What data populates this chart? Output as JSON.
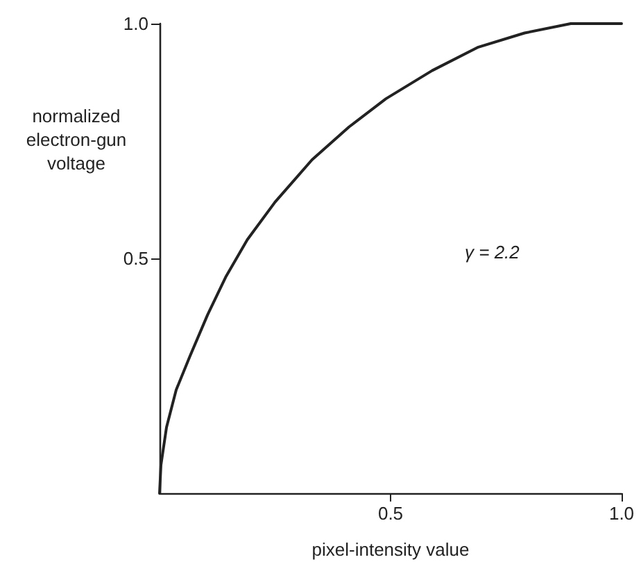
{
  "chart_data": {
    "type": "line",
    "xlabel": "pixel-intensity value",
    "ylabel": "normalized\nelectron-gun\nvoltage",
    "annotations": [
      "γ = 2.2"
    ],
    "xlim": [
      0,
      1
    ],
    "ylim": [
      0,
      1
    ],
    "xticks": [
      0.5,
      {
        "value": 1,
        "label": "1.0"
      }
    ],
    "yticks": [
      0.5,
      {
        "value": 1,
        "label": "1.0"
      }
    ],
    "grid": false,
    "marker": "none",
    "line_style": "solid",
    "series": [
      {
        "color": "#222222",
        "x": [
          0,
          0.003,
          0.015,
          0.036,
          0.065,
          0.104,
          0.143,
          0.19,
          0.25,
          0.33,
          0.41,
          0.49,
          0.59,
          0.69,
          0.79,
          0.89,
          1.0
        ],
        "values": [
          0,
          0.06,
          0.14,
          0.22,
          0.29,
          0.38,
          0.46,
          0.54,
          0.62,
          0.71,
          0.78,
          0.84,
          0.9,
          0.95,
          0.98,
          1.0,
          1.0
        ]
      }
    ]
  }
}
